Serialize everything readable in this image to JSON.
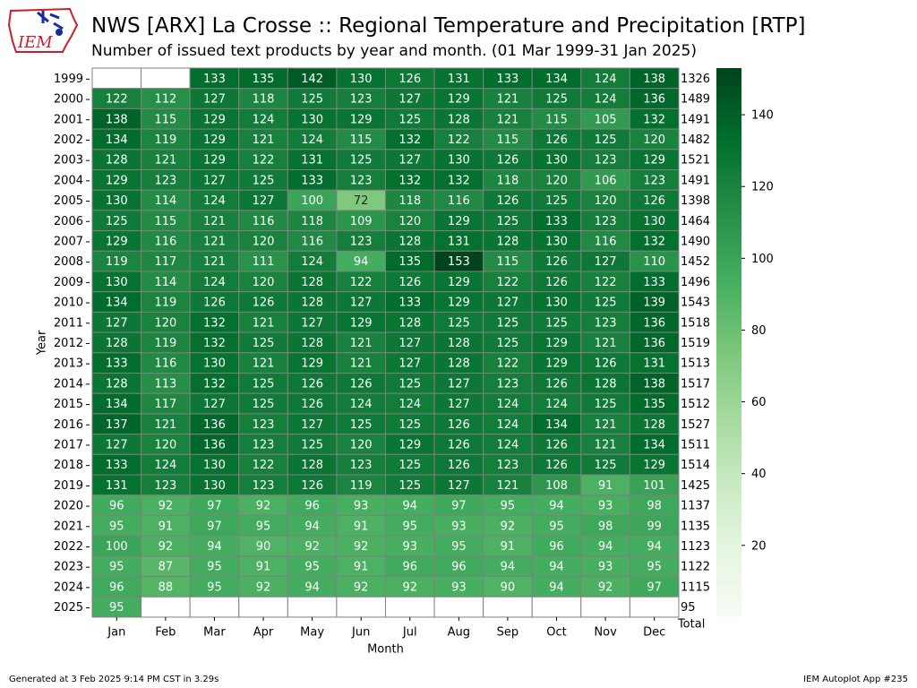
{
  "header": {
    "title": "NWS [ARX] La Crosse :: Regional Temperature and Precipitation [RTP]",
    "subtitle": "Number of issued text products by year and month. (01 Mar 1999-31 Jan 2025)"
  },
  "logo": {
    "text": "IEM",
    "icon": "iowa-state-outline-logo"
  },
  "footer": {
    "left": "Generated at 3 Feb 2025 9:14 PM CST in 3.29s",
    "right": "IEM Autoplot App #235"
  },
  "chart_data": {
    "type": "heatmap",
    "xlabel": "Month",
    "ylabel": "Year",
    "total_label": "Total",
    "months": [
      "Jan",
      "Feb",
      "Mar",
      "Apr",
      "May",
      "Jun",
      "Jul",
      "Aug",
      "Sep",
      "Oct",
      "Nov",
      "Dec"
    ],
    "years": [
      "1999",
      "2000",
      "2001",
      "2002",
      "2003",
      "2004",
      "2005",
      "2006",
      "2007",
      "2008",
      "2009",
      "2010",
      "2011",
      "2012",
      "2013",
      "2014",
      "2015",
      "2016",
      "2017",
      "2018",
      "2019",
      "2020",
      "2021",
      "2022",
      "2023",
      "2024",
      "2025"
    ],
    "values": [
      [
        null,
        null,
        133,
        135,
        142,
        130,
        126,
        131,
        133,
        134,
        124,
        138
      ],
      [
        122,
        112,
        127,
        118,
        125,
        123,
        127,
        129,
        121,
        125,
        124,
        136
      ],
      [
        138,
        115,
        129,
        124,
        130,
        129,
        125,
        128,
        121,
        115,
        105,
        132
      ],
      [
        134,
        119,
        129,
        121,
        124,
        115,
        132,
        122,
        115,
        126,
        125,
        120
      ],
      [
        128,
        121,
        129,
        122,
        131,
        125,
        127,
        130,
        126,
        130,
        123,
        129
      ],
      [
        129,
        123,
        127,
        125,
        133,
        123,
        132,
        132,
        118,
        120,
        106,
        123
      ],
      [
        130,
        114,
        124,
        127,
        100,
        72,
        118,
        116,
        126,
        125,
        120,
        126
      ],
      [
        125,
        115,
        121,
        116,
        118,
        109,
        120,
        129,
        125,
        133,
        123,
        130
      ],
      [
        129,
        116,
        121,
        120,
        116,
        123,
        128,
        131,
        128,
        130,
        116,
        132
      ],
      [
        119,
        117,
        121,
        111,
        124,
        94,
        135,
        153,
        115,
        126,
        127,
        110
      ],
      [
        130,
        114,
        124,
        120,
        128,
        122,
        126,
        129,
        122,
        126,
        122,
        133
      ],
      [
        134,
        119,
        126,
        126,
        128,
        127,
        133,
        129,
        127,
        130,
        125,
        139
      ],
      [
        127,
        120,
        132,
        121,
        127,
        129,
        128,
        125,
        125,
        125,
        123,
        136
      ],
      [
        128,
        119,
        132,
        125,
        128,
        121,
        127,
        128,
        125,
        129,
        121,
        136
      ],
      [
        133,
        116,
        130,
        121,
        129,
        121,
        127,
        128,
        122,
        129,
        126,
        131
      ],
      [
        128,
        113,
        132,
        125,
        126,
        126,
        125,
        127,
        123,
        126,
        128,
        138
      ],
      [
        134,
        117,
        127,
        125,
        126,
        124,
        124,
        127,
        124,
        124,
        125,
        135
      ],
      [
        137,
        121,
        136,
        123,
        127,
        125,
        125,
        126,
        124,
        134,
        121,
        128
      ],
      [
        127,
        120,
        136,
        123,
        125,
        120,
        129,
        126,
        124,
        126,
        121,
        134
      ],
      [
        133,
        124,
        130,
        122,
        128,
        123,
        125,
        126,
        123,
        126,
        125,
        129
      ],
      [
        131,
        123,
        130,
        123,
        126,
        119,
        125,
        127,
        121,
        108,
        91,
        101
      ],
      [
        96,
        92,
        97,
        92,
        96,
        93,
        94,
        97,
        95,
        94,
        93,
        98
      ],
      [
        95,
        91,
        97,
        95,
        94,
        91,
        95,
        93,
        92,
        95,
        98,
        99
      ],
      [
        100,
        92,
        94,
        90,
        92,
        92,
        93,
        95,
        91,
        96,
        94,
        94
      ],
      [
        95,
        87,
        95,
        91,
        95,
        91,
        96,
        96,
        94,
        94,
        93,
        95
      ],
      [
        96,
        88,
        95,
        92,
        94,
        92,
        92,
        93,
        90,
        94,
        92,
        97
      ],
      [
        95,
        null,
        null,
        null,
        null,
        null,
        null,
        null,
        null,
        null,
        null,
        null
      ]
    ],
    "totals": [
      "1326",
      "1489",
      "1491",
      "1482",
      "1521",
      "1491",
      "1398",
      "1464",
      "1490",
      "1452",
      "1496",
      "1543",
      "1518",
      "1519",
      "1513",
      "1517",
      "1512",
      "1527",
      "1511",
      "1514",
      "1425",
      "1137",
      "1135",
      "1123",
      "1122",
      "1115",
      "95"
    ],
    "colorbar": {
      "min": 0,
      "max": 153,
      "ticks": [
        "20",
        "40",
        "60",
        "80",
        "100",
        "120",
        "140"
      ],
      "tick_values": [
        20,
        40,
        60,
        80,
        100,
        120,
        140
      ]
    },
    "colormap": "Greens"
  }
}
